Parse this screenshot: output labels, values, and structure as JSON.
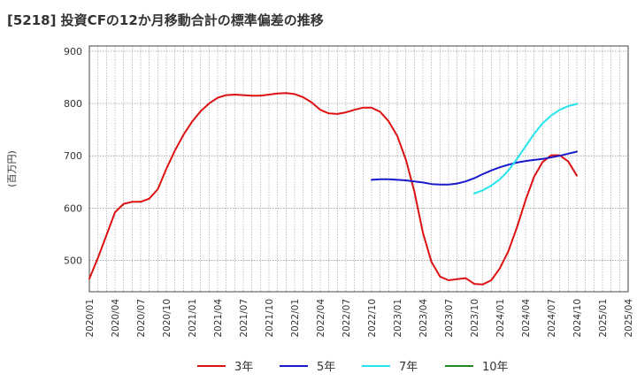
{
  "chart_data": {
    "type": "line",
    "title": "[5218]  投資CFの12か月移動合計の標準偏差の推移",
    "ylabel": "(百万円)",
    "xlabel": "",
    "ylim": [
      440,
      910
    ],
    "yticks": [
      500,
      600,
      700,
      800,
      900
    ],
    "x_ticks": [
      "2020/01",
      "2020/04",
      "2020/07",
      "2020/10",
      "2021/01",
      "2021/04",
      "2021/07",
      "2021/10",
      "2022/01",
      "2022/04",
      "2022/07",
      "2022/10",
      "2023/01",
      "2023/04",
      "2023/07",
      "2023/10",
      "2024/01",
      "2024/04",
      "2024/07",
      "2024/10",
      "2025/01",
      "2025/04"
    ],
    "x_range": [
      "2020/01",
      "2025/04"
    ],
    "grid": true,
    "legend_position": "bottom",
    "series": [
      {
        "name": "3年",
        "color": "#dd1111",
        "x": [
          "2020/01",
          "2020/02",
          "2020/03",
          "2020/04",
          "2020/05",
          "2020/06",
          "2020/07",
          "2020/08",
          "2020/09",
          "2020/10",
          "2020/11",
          "2020/12",
          "2021/01",
          "2021/02",
          "2021/03",
          "2021/04",
          "2021/05",
          "2021/06",
          "2021/07",
          "2021/08",
          "2021/09",
          "2021/10",
          "2021/11",
          "2021/12",
          "2022/01",
          "2022/02",
          "2022/03",
          "2022/04",
          "2022/05",
          "2022/06",
          "2022/07",
          "2022/08",
          "2022/09",
          "2022/10",
          "2022/11",
          "2022/12",
          "2023/01",
          "2023/02",
          "2023/03",
          "2023/04",
          "2023/05",
          "2023/06",
          "2023/07",
          "2023/08",
          "2023/09",
          "2023/10",
          "2023/11",
          "2023/12",
          "2024/01",
          "2024/02",
          "2024/03",
          "2024/04",
          "2024/05",
          "2024/06",
          "2024/07",
          "2024/08",
          "2024/09",
          "2024/10"
        ],
        "values": [
          465,
          505,
          548,
          592,
          608,
          612,
          612,
          618,
          636,
          675,
          710,
          740,
          765,
          785,
          800,
          811,
          816,
          817,
          816,
          815,
          815,
          817,
          819,
          820,
          818,
          812,
          802,
          788,
          781,
          780,
          783,
          788,
          792,
          792,
          784,
          766,
          738,
          693,
          632,
          553,
          497,
          469,
          462,
          464,
          466,
          455,
          454,
          462,
          485,
          518,
          563,
          615,
          660,
          688,
          701,
          701,
          689,
          662
        ]
      },
      {
        "name": "5年",
        "color": "#1a1acc",
        "x": [
          "2022/10",
          "2022/11",
          "2022/12",
          "2023/01",
          "2023/02",
          "2023/03",
          "2023/04",
          "2023/05",
          "2023/06",
          "2023/07",
          "2023/08",
          "2023/09",
          "2023/10",
          "2023/11",
          "2023/12",
          "2024/01",
          "2024/02",
          "2024/03",
          "2024/04",
          "2024/05",
          "2024/06",
          "2024/07",
          "2024/08",
          "2024/09",
          "2024/10"
        ],
        "values": [
          654,
          655,
          655,
          654,
          653,
          651,
          649,
          646,
          645,
          645,
          647,
          651,
          657,
          665,
          672,
          678,
          683,
          687,
          690,
          692,
          694,
          697,
          700,
          704,
          708
        ]
      },
      {
        "name": "7年",
        "color": "#22e5ee",
        "x": [
          "2023/10",
          "2023/11",
          "2023/12",
          "2024/01",
          "2024/02",
          "2024/03",
          "2024/04",
          "2024/05",
          "2024/06",
          "2024/07",
          "2024/08",
          "2024/09",
          "2024/10"
        ],
        "values": [
          628,
          634,
          643,
          655,
          672,
          694,
          718,
          742,
          762,
          777,
          788,
          795,
          799
        ]
      },
      {
        "name": "10年",
        "color": "#228822",
        "x": [],
        "values": []
      }
    ]
  }
}
